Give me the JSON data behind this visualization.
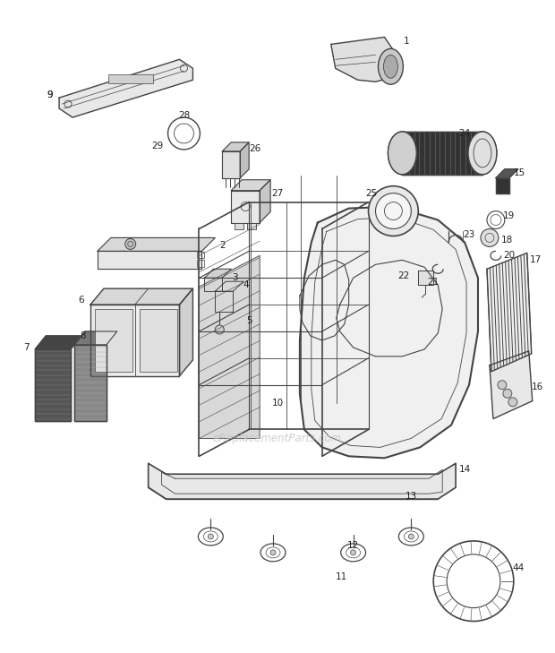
{
  "bg_color": "#ffffff",
  "line_color": "#444444",
  "text_color": "#222222",
  "watermark_color": "#bbbbbb",
  "watermark_text": "eReplacementParts.com",
  "fig_width": 6.2,
  "fig_height": 7.29,
  "dpi": 100,
  "label_fontsize": 7.5
}
